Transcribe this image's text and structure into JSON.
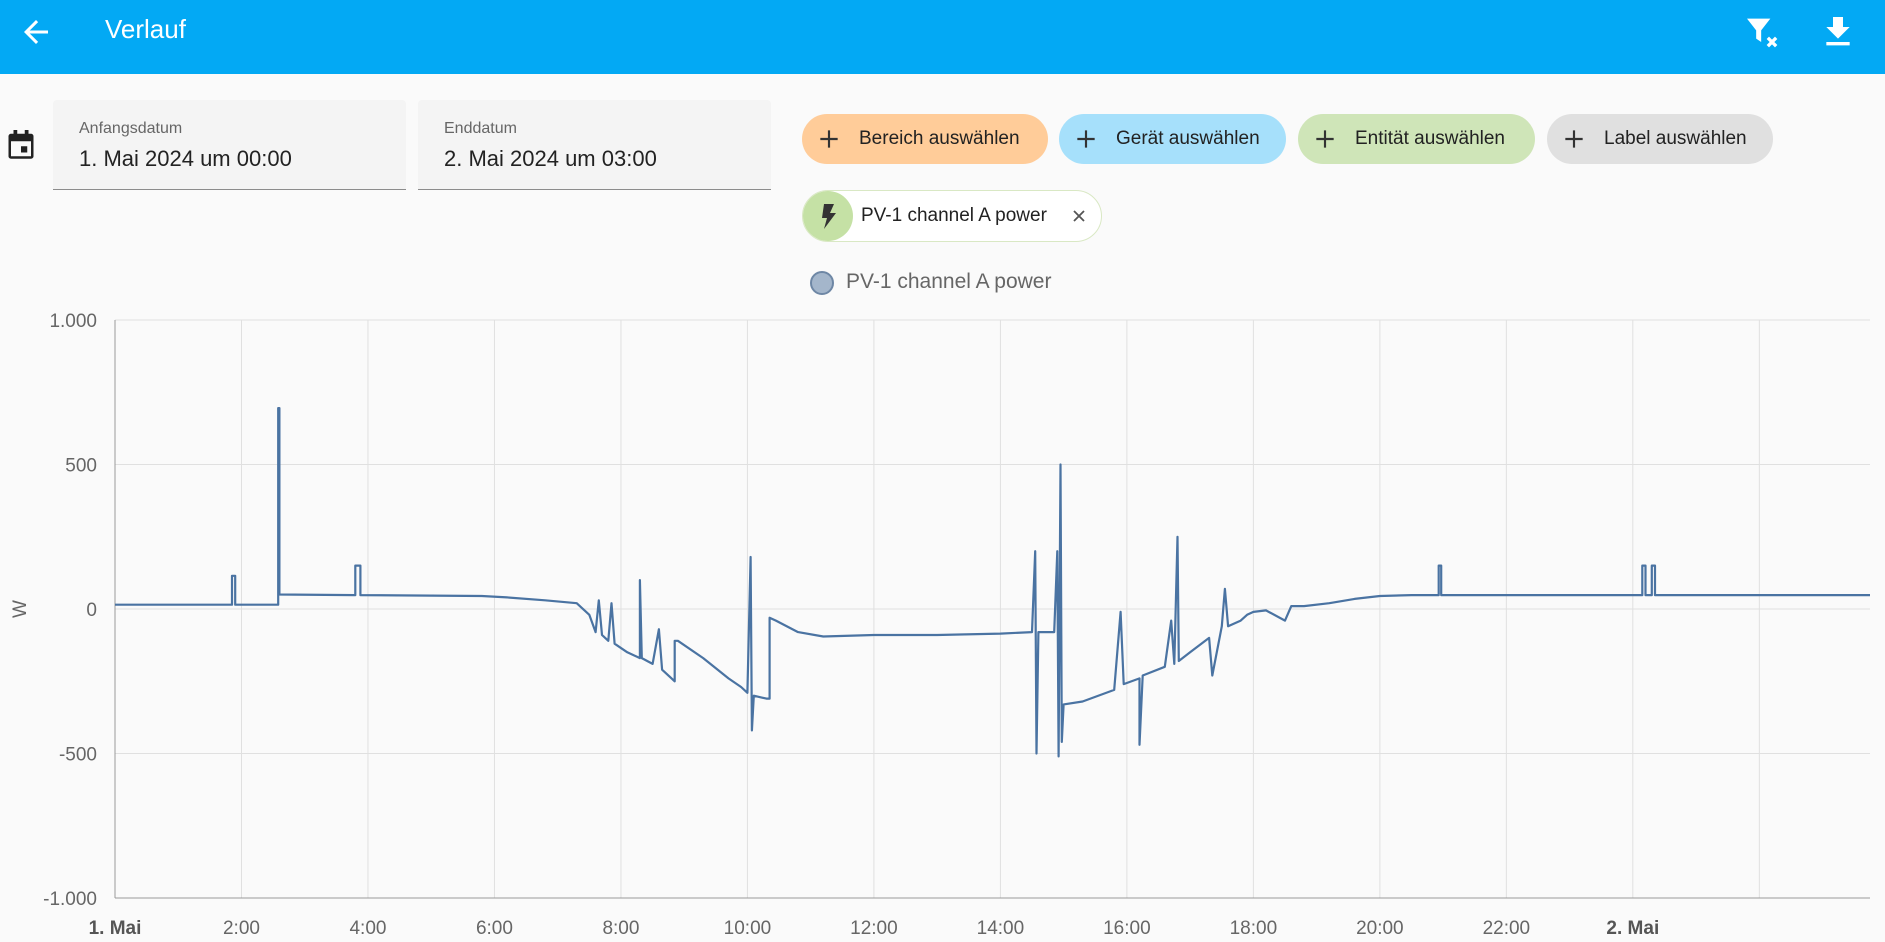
{
  "header": {
    "title": "Verlauf",
    "back_icon": "arrow-left-icon",
    "actions": [
      "filter-remove-icon",
      "download-icon"
    ],
    "background": "#03a9f4"
  },
  "dates": {
    "start": {
      "label": "Anfangsdatum",
      "value": "1. Mai 2024 um 00:00"
    },
    "end": {
      "label": "Enddatum",
      "value": "2. Mai 2024 um 03:00"
    }
  },
  "targets": [
    {
      "label": "Bereich auswählen",
      "color": "#ffcc99"
    },
    {
      "label": "Gerät auswählen",
      "color": "#a6e0fb"
    },
    {
      "label": "Entität auswählen",
      "color": "#cfe5b8"
    },
    {
      "label": "Label auswählen",
      "color": "#e0e0e0"
    }
  ],
  "entity_chip": {
    "label": "PV-1 channel A power",
    "icon": "flash-icon"
  },
  "chart_data": {
    "type": "line",
    "legend": "top",
    "grid": true,
    "ylabel": "W",
    "ylim": [
      -1000,
      1000
    ],
    "yticks": [
      "1.000",
      "500",
      "0",
      "-500",
      "-1.000"
    ],
    "xlim": [
      0,
      27.75
    ],
    "xticks": [
      {
        "t": 0,
        "label": "1. Mai",
        "bold": true
      },
      {
        "t": 2,
        "label": "2:00"
      },
      {
        "t": 4,
        "label": "4:00"
      },
      {
        "t": 6,
        "label": "6:00"
      },
      {
        "t": 8,
        "label": "8:00"
      },
      {
        "t": 10,
        "label": "10:00"
      },
      {
        "t": 12,
        "label": "12:00"
      },
      {
        "t": 14,
        "label": "14:00"
      },
      {
        "t": 16,
        "label": "16:00"
      },
      {
        "t": 18,
        "label": "18:00"
      },
      {
        "t": 20,
        "label": "20:00"
      },
      {
        "t": 22,
        "label": "22:00"
      },
      {
        "t": 24,
        "label": "2. Mai",
        "bold": true
      },
      {
        "t": 26,
        "label": ""
      }
    ],
    "series": [
      {
        "name": "PV-1 channel A power",
        "color": "#4a73a2",
        "points": [
          [
            0,
            15
          ],
          [
            1.85,
            15
          ],
          [
            1.85,
            115
          ],
          [
            1.9,
            115
          ],
          [
            1.9,
            15
          ],
          [
            2.58,
            15
          ],
          [
            2.58,
            695
          ],
          [
            2.6,
            695
          ],
          [
            2.6,
            50
          ],
          [
            3.8,
            48
          ],
          [
            3.8,
            150
          ],
          [
            3.88,
            150
          ],
          [
            3.88,
            48
          ],
          [
            5.8,
            45
          ],
          [
            6.2,
            40
          ],
          [
            6.8,
            30
          ],
          [
            7.3,
            20
          ],
          [
            7.5,
            -20
          ],
          [
            7.6,
            -80
          ],
          [
            7.65,
            30
          ],
          [
            7.7,
            -90
          ],
          [
            7.8,
            -110
          ],
          [
            7.85,
            20
          ],
          [
            7.9,
            -120
          ],
          [
            8.1,
            -150
          ],
          [
            8.3,
            -170
          ],
          [
            8.3,
            100
          ],
          [
            8.33,
            -170
          ],
          [
            8.5,
            -190
          ],
          [
            8.6,
            -70
          ],
          [
            8.65,
            -210
          ],
          [
            8.85,
            -250
          ],
          [
            8.85,
            -110
          ],
          [
            8.9,
            -110
          ],
          [
            9.3,
            -170
          ],
          [
            9.7,
            -240
          ],
          [
            9.9,
            -270
          ],
          [
            10.0,
            -290
          ],
          [
            10.05,
            180
          ],
          [
            10.07,
            -420
          ],
          [
            10.1,
            -300
          ],
          [
            10.3,
            -310
          ],
          [
            10.35,
            -310
          ],
          [
            10.35,
            -30
          ],
          [
            10.45,
            -40
          ],
          [
            10.8,
            -80
          ],
          [
            11.2,
            -95
          ],
          [
            12.0,
            -90
          ],
          [
            13.0,
            -90
          ],
          [
            14.0,
            -85
          ],
          [
            14.5,
            -80
          ],
          [
            14.55,
            200
          ],
          [
            14.57,
            -500
          ],
          [
            14.6,
            -80
          ],
          [
            14.85,
            -80
          ],
          [
            14.9,
            200
          ],
          [
            14.92,
            -510
          ],
          [
            14.95,
            500
          ],
          [
            14.97,
            -460
          ],
          [
            15.0,
            -330
          ],
          [
            15.3,
            -320
          ],
          [
            15.8,
            -280
          ],
          [
            15.9,
            -10
          ],
          [
            15.95,
            -260
          ],
          [
            16.2,
            -240
          ],
          [
            16.2,
            -470
          ],
          [
            16.25,
            -230
          ],
          [
            16.6,
            -200
          ],
          [
            16.7,
            -40
          ],
          [
            16.75,
            -190
          ],
          [
            16.8,
            250
          ],
          [
            16.82,
            -180
          ],
          [
            17.0,
            -150
          ],
          [
            17.3,
            -100
          ],
          [
            17.35,
            -230
          ],
          [
            17.5,
            -60
          ],
          [
            17.55,
            70
          ],
          [
            17.6,
            -60
          ],
          [
            17.8,
            -40
          ],
          [
            17.9,
            -20
          ],
          [
            18.0,
            -10
          ],
          [
            18.2,
            -5
          ],
          [
            18.5,
            -40
          ],
          [
            18.6,
            10
          ],
          [
            18.8,
            10
          ],
          [
            19.2,
            20
          ],
          [
            19.6,
            35
          ],
          [
            20.0,
            45
          ],
          [
            20.5,
            48
          ],
          [
            20.93,
            48
          ],
          [
            20.93,
            150
          ],
          [
            20.97,
            150
          ],
          [
            20.97,
            48
          ],
          [
            24.15,
            48
          ],
          [
            24.15,
            150
          ],
          [
            24.2,
            150
          ],
          [
            24.2,
            48
          ],
          [
            24.3,
            48
          ],
          [
            24.3,
            150
          ],
          [
            24.35,
            150
          ],
          [
            24.35,
            48
          ],
          [
            27.75,
            48
          ]
        ]
      }
    ]
  }
}
